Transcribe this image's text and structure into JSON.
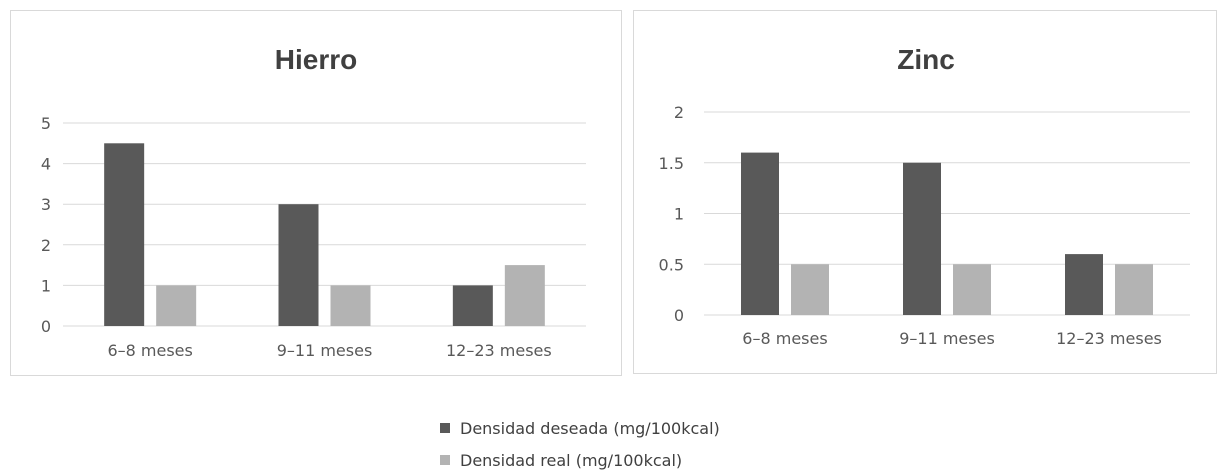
{
  "chart_data": [
    {
      "type": "bar",
      "title": "Hierro",
      "categories": [
        "6–8 meses",
        "9–11 meses",
        "12–23 meses"
      ],
      "yticks": [
        "0",
        "1",
        "2",
        "3",
        "4",
        "5"
      ],
      "ylim": [
        0,
        5
      ],
      "grid": true,
      "series": [
        {
          "name": "Densidad deseada (mg/100kcal)",
          "values": [
            4.5,
            3,
            1
          ]
        },
        {
          "name": "Densidad real (mg/100kcal)",
          "values": [
            1,
            1,
            1.5
          ]
        }
      ]
    },
    {
      "type": "bar",
      "title": "Zinc",
      "categories": [
        "6–8 meses",
        "9–11 meses",
        "12–23 meses"
      ],
      "yticks": [
        "0",
        "0.5",
        "1",
        "1.5",
        "2"
      ],
      "ylim": [
        0,
        2
      ],
      "grid": true,
      "series": [
        {
          "name": "Densidad deseada (mg/100kcal)",
          "values": [
            1.6,
            1.5,
            0.6
          ]
        },
        {
          "name": "Densidad real (mg/100kcal)",
          "values": [
            0.5,
            0.5,
            0.5
          ]
        }
      ]
    }
  ],
  "legend": {
    "placement": "bottom",
    "items": [
      {
        "label": "Densidad deseada (mg/100kcal)",
        "color": "#595959"
      },
      {
        "label": "Densidad real (mg/100kcal)",
        "color": "#b3b3b3"
      }
    ]
  },
  "colors": {
    "series": [
      "#595959",
      "#b3b3b3"
    ]
  }
}
